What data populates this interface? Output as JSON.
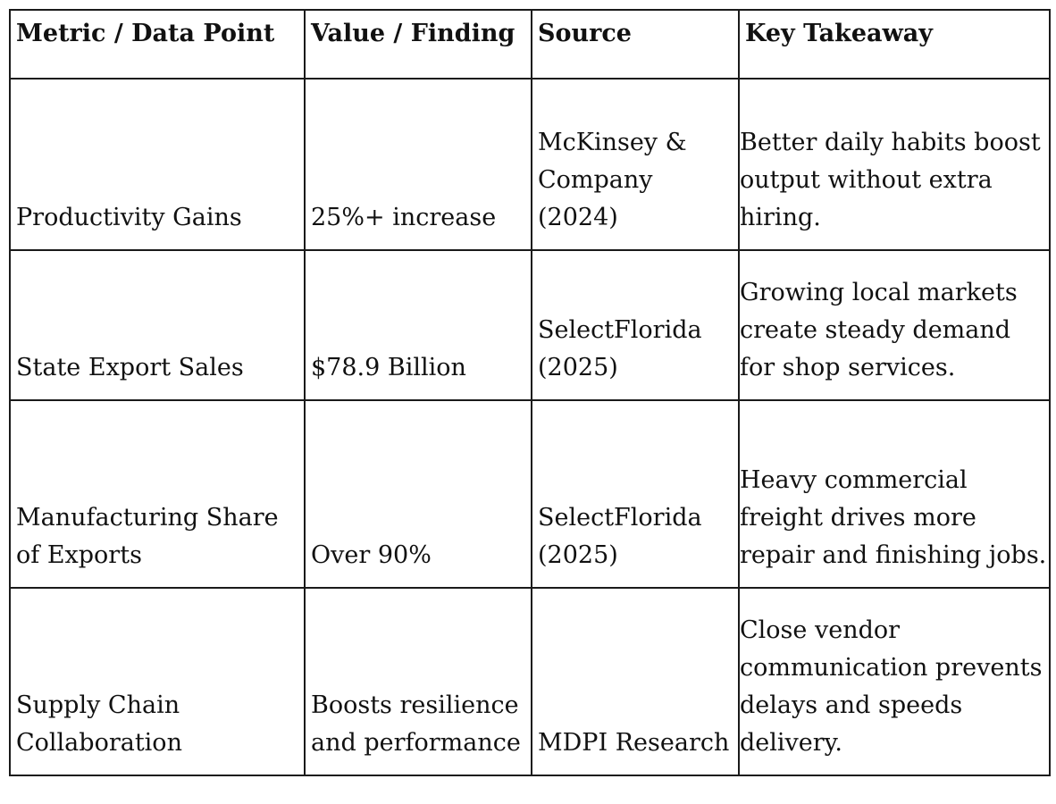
{
  "table": {
    "headers": [
      "Metric / Data Point",
      "Value / Finding",
      "Source",
      "Key Takeaway"
    ],
    "rows": [
      {
        "metric": "Productivity Gains",
        "value": "25%+ increase",
        "source": "McKinsey & Company (2024)",
        "takeaway": "Better daily habits boost output without extra hiring."
      },
      {
        "metric": "State Export Sales",
        "value": "$78.9 Billion",
        "source": "SelectFlorida (2025)",
        "takeaway": "Growing local markets create steady demand for shop services."
      },
      {
        "metric": "Manufacturing Share of Exports",
        "value": "Over 90%",
        "source": "SelectFlorida (2025)",
        "takeaway": "Heavy commercial freight drives more repair and finishing jobs."
      },
      {
        "metric": "Supply Chain Collaboration",
        "value": "Boosts resilience and performance",
        "source": "MDPI Research",
        "takeaway": "Close vendor communication prevents delays and speeds delivery."
      }
    ]
  }
}
